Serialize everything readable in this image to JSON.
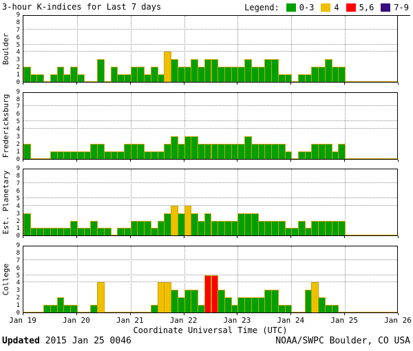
{
  "title": "3-hour K-indices for Last 7 days",
  "legend": {
    "label": "Legend:",
    "items": [
      {
        "label": "0-3",
        "color": "#00A000"
      },
      {
        "label": "4",
        "color": "#F0C000"
      },
      {
        "label": "5,6",
        "color": "#FF0000"
      },
      {
        "label": "7-9",
        "color": "#3A0E7E"
      }
    ]
  },
  "footer": {
    "updated_label": "Updated",
    "updated_value": " 2015 Jan 25 0046",
    "source": "NOAA/SWPC Boulder, CO USA"
  },
  "chart_data": {
    "type": "bar",
    "title": "3-hour K-indices for Last 7 days",
    "xlabel": "Coordinate Universal Time (UTC)",
    "x_tick_labels": [
      "Jan 19",
      "Jan 20",
      "Jan 21",
      "Jan 22",
      "Jan 23",
      "Jan 24",
      "Jan 25",
      "Jan 26"
    ],
    "days_shown": 7,
    "bars_per_day": 8,
    "bar_interval_hours": 3,
    "ylim": [
      0,
      9
    ],
    "y_ticks": [
      0,
      1,
      2,
      3,
      4,
      5,
      6,
      7,
      8,
      9
    ],
    "hgrid_values": [
      4,
      5,
      7
    ],
    "grid": "dotted",
    "legend_position": "top-right",
    "palette": {
      "green": "#00A000",
      "yellow": "#F0C000",
      "red": "#FF0000",
      "purple": "#3A0E7E",
      "outline": "#C9A200"
    },
    "color_rule": [
      {
        "max": 3,
        "color": "green"
      },
      {
        "max": 4,
        "color": "yellow"
      },
      {
        "max": 6,
        "color": "red"
      },
      {
        "max": 9,
        "color": "purple"
      }
    ],
    "series": [
      {
        "name": "Boulder",
        "values": [
          2,
          1,
          1,
          0,
          1,
          2,
          1,
          2,
          1,
          0,
          0,
          3,
          0,
          2,
          1,
          1,
          2,
          2,
          1,
          2,
          1,
          4,
          3,
          2,
          2,
          3,
          2,
          3,
          3,
          2,
          2,
          2,
          2,
          3,
          2,
          2,
          3,
          3,
          1,
          1,
          0,
          1,
          1,
          2,
          2,
          3,
          2,
          2
        ]
      },
      {
        "name": "Fredericksburg",
        "values": [
          2,
          0,
          0,
          0,
          1,
          1,
          1,
          1,
          1,
          1,
          2,
          2,
          1,
          1,
          1,
          2,
          2,
          2,
          1,
          1,
          1,
          2,
          3,
          2,
          3,
          3,
          2,
          2,
          2,
          2,
          2,
          2,
          2,
          3,
          2,
          2,
          2,
          2,
          2,
          1,
          0,
          1,
          1,
          2,
          2,
          2,
          1,
          2
        ]
      },
      {
        "name": "Est. Planetary",
        "values": [
          3,
          1,
          1,
          1,
          1,
          1,
          1,
          2,
          1,
          1,
          2,
          1,
          1,
          0,
          1,
          1,
          2,
          2,
          2,
          1,
          2,
          3,
          4,
          3,
          4,
          3,
          2,
          3,
          2,
          2,
          2,
          2,
          3,
          3,
          3,
          2,
          2,
          2,
          2,
          1,
          1,
          2,
          1,
          2,
          2,
          2,
          2,
          2
        ]
      },
      {
        "name": "College",
        "values": [
          0,
          0,
          0,
          1,
          1,
          2,
          1,
          1,
          0,
          0,
          1,
          4,
          0,
          0,
          0,
          0,
          0,
          0,
          0,
          1,
          4,
          4,
          3,
          2,
          3,
          3,
          1,
          5,
          5,
          3,
          2,
          1,
          2,
          2,
          2,
          2,
          3,
          3,
          1,
          1,
          0,
          0,
          3,
          4,
          2,
          1,
          1,
          0
        ]
      }
    ]
  }
}
